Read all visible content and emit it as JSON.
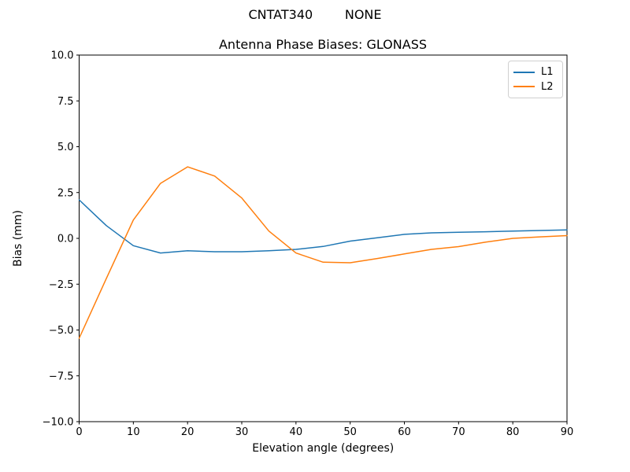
{
  "chart_data": {
    "type": "line",
    "suptitle": "CNTAT340        NONE",
    "title": "Antenna Phase Biases: GLONASS",
    "xlabel": "Elevation angle (degrees)",
    "ylabel": "Bias (mm)",
    "xlim": [
      0,
      90
    ],
    "ylim": [
      -10,
      10
    ],
    "xticks": [
      0,
      10,
      20,
      30,
      40,
      50,
      60,
      70,
      80,
      90
    ],
    "yticks": [
      -10,
      -7.5,
      -5,
      -2.5,
      0,
      2.5,
      5,
      7.5,
      10
    ],
    "grid": false,
    "legend_position": "upper right",
    "x": [
      0,
      5,
      10,
      15,
      20,
      25,
      30,
      35,
      40,
      45,
      50,
      55,
      60,
      65,
      70,
      75,
      80,
      85,
      90
    ],
    "series": [
      {
        "name": "L1",
        "color": "#1f77b4",
        "values": [
          2.1,
          0.7,
          -0.4,
          -0.8,
          -0.68,
          -0.73,
          -0.73,
          -0.68,
          -0.6,
          -0.44,
          -0.15,
          0.03,
          0.22,
          0.3,
          0.33,
          0.36,
          0.4,
          0.43,
          0.46
        ]
      },
      {
        "name": "L2",
        "color": "#ff7f0e",
        "values": [
          -5.45,
          -2.2,
          1.0,
          3.0,
          3.9,
          3.4,
          2.2,
          0.4,
          -0.8,
          -1.3,
          -1.33,
          -1.1,
          -0.85,
          -0.6,
          -0.45,
          -0.2,
          0.0,
          0.08,
          0.15
        ]
      }
    ],
    "colors": {
      "spine": "#000000",
      "text": "#000000",
      "legend_border": "#d0d0d0"
    }
  }
}
